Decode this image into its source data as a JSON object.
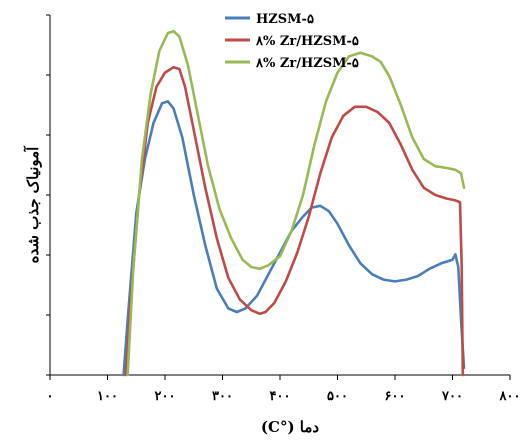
{
  "chart_data": {
    "type": "line",
    "title": "",
    "xlabel": "دما (°C)",
    "ylabel": "آمونیاک جذب شده",
    "xlim": [
      0,
      800
    ],
    "ylim": [
      0,
      100
    ],
    "x_ticks": [
      0,
      100,
      200,
      300,
      400,
      500,
      600,
      700,
      800
    ],
    "x_tick_labels": [
      "۰",
      "۱۰۰",
      "۲۰۰",
      "۳۰۰",
      "۴۰۰",
      "۵۰۰",
      "۶۰۰",
      "۷۰۰",
      "۸۰۰"
    ],
    "y_tick_count": 6,
    "grid": false,
    "legend_position": "top-center",
    "series": [
      {
        "name": "HZSM-۵",
        "color": "#4a7ebb",
        "x": [
          128,
          135,
          150,
          165,
          180,
          195,
          205,
          215,
          230,
          250,
          270,
          290,
          310,
          325,
          340,
          360,
          380,
          400,
          420,
          440,
          455,
          470,
          485,
          500,
          520,
          540,
          560,
          580,
          600,
          620,
          640,
          660,
          680,
          700,
          705,
          710,
          715,
          720
        ],
        "y": [
          0,
          15,
          45,
          60,
          70,
          75.5,
          76,
          74,
          66,
          50,
          36,
          24,
          18.5,
          17.5,
          18.5,
          22,
          28,
          34,
          40,
          44,
          46.5,
          47,
          45.5,
          42,
          36,
          31,
          28,
          26.5,
          26,
          26.5,
          27.5,
          29.5,
          31,
          32,
          33.5,
          30,
          15,
          2
        ]
      },
      {
        "name": "٨% Zr/HZSM-۵",
        "color": "#be4b48",
        "x": [
          132,
          140,
          155,
          170,
          185,
          200,
          215,
          225,
          235,
          250,
          270,
          290,
          310,
          330,
          350,
          365,
          375,
          390,
          410,
          430,
          450,
          470,
          490,
          510,
          530,
          550,
          570,
          590,
          610,
          630,
          650,
          670,
          690,
          705,
          713,
          716,
          718
        ],
        "y": [
          0,
          20,
          50,
          70,
          80,
          84,
          85.5,
          85,
          80,
          68,
          52,
          38,
          27,
          21,
          18,
          17,
          17.5,
          20,
          26,
          34,
          44,
          56,
          66,
          72,
          74.5,
          74.5,
          73,
          70,
          64,
          57,
          52,
          50,
          49,
          48.5,
          48,
          30,
          0
        ]
      },
      {
        "name": "٨% Zr/HZSM-۵",
        "color": "#98b954",
        "x": [
          135,
          145,
          160,
          175,
          190,
          205,
          215,
          225,
          240,
          255,
          275,
          295,
          315,
          335,
          350,
          365,
          380,
          400,
          420,
          440,
          460,
          480,
          500,
          520,
          540,
          560,
          575,
          590,
          610,
          630,
          650,
          670,
          690,
          705,
          715,
          720
        ],
        "y": [
          0,
          30,
          60,
          78,
          90,
          95,
          95.5,
          94,
          86,
          74,
          58,
          46,
          38,
          32,
          30,
          29.5,
          30.5,
          33,
          40,
          50,
          64,
          76,
          84,
          88.5,
          89.5,
          88.5,
          87,
          83,
          75,
          66,
          60,
          58,
          57.5,
          57,
          56,
          52
        ]
      }
    ]
  }
}
